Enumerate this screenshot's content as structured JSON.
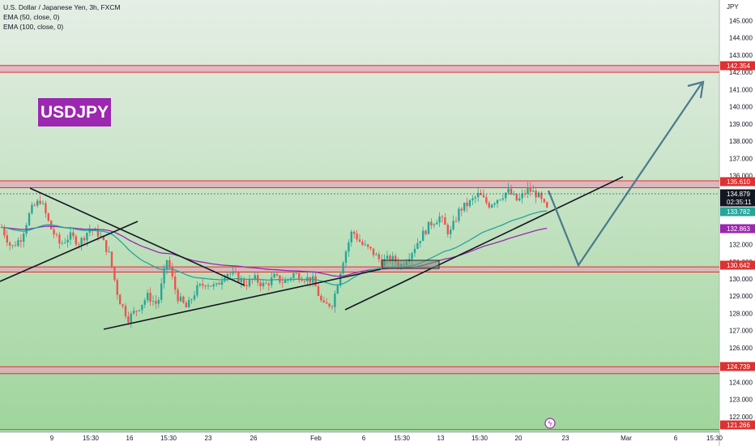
{
  "header": {
    "symbol_line": "U.S. Dollar / Japanese Yen, 3h, FXCM",
    "ema50": "EMA (50, close, 0)",
    "ema100": "EMA (100, close, 0)"
  },
  "watermark": "USDJPY",
  "colors": {
    "bg_top": "#e6eee6",
    "bg_bottom": "#9fd59c",
    "zone_red": "#e03030",
    "zone_fill": "#e7a7b8",
    "ema50": "#26a69a",
    "ema100": "#9c27b0",
    "bull": "#26a69a",
    "bear": "#ef5350",
    "trendline": "#131722",
    "projection": "#4a7a8c"
  },
  "chart_data": {
    "type": "candlestick",
    "currency": "JPY",
    "y_ticks": [
      122.0,
      123.0,
      124.0,
      125.0,
      126.0,
      127.0,
      128.0,
      129.0,
      130.0,
      131.0,
      132.0,
      133.0,
      134.0,
      135.0,
      136.0,
      137.0,
      138.0,
      139.0,
      140.0,
      141.0,
      142.0,
      143.0,
      144.0,
      145.0
    ],
    "ylim": [
      121.1,
      146.2
    ],
    "x_ticks": [
      "9",
      "15:30",
      "16",
      "15:30",
      "23",
      "26",
      "Feb",
      "6",
      "15:30",
      "13",
      "15:30",
      "20",
      "23",
      "Mar",
      "6",
      "15:30"
    ],
    "price_labels": [
      {
        "value": "142.354",
        "style": "red"
      },
      {
        "value": "135.610",
        "style": "red"
      },
      {
        "value": "134.879",
        "style": "dark"
      },
      {
        "value": "02:35:11",
        "style": "dark"
      },
      {
        "value": "133.782",
        "style": "teal"
      },
      {
        "value": "132.863",
        "style": "purple"
      },
      {
        "value": "130.642",
        "style": "red"
      },
      {
        "value": "124.739",
        "style": "red"
      },
      {
        "value": "121.266",
        "style": "red"
      }
    ],
    "zones": [
      {
        "from": 142.0,
        "to": 142.4
      },
      {
        "from": 135.3,
        "to": 135.7
      },
      {
        "from": 130.4,
        "to": 130.7
      },
      {
        "from": 124.5,
        "to": 124.9
      }
    ],
    "price_path": [
      133.0,
      131.8,
      132.4,
      134.0,
      134.6,
      133.0,
      132.0,
      132.5,
      132.1,
      132.9,
      132.6,
      131.5,
      128.9,
      127.7,
      128.3,
      129.0,
      128.5,
      131.2,
      129.0,
      128.3,
      129.4,
      129.8,
      129.5,
      130.4,
      130.2,
      129.7,
      130.0,
      129.6,
      130.1,
      129.8,
      130.3,
      130.1,
      129.9,
      128.4,
      128.6,
      131.0,
      132.8,
      132.0,
      131.6,
      131.0,
      131.2,
      130.8,
      131.5,
      132.4,
      133.2,
      133.6,
      132.6,
      134.0,
      134.4,
      134.9,
      134.3,
      134.7,
      135.1,
      134.5,
      135.2,
      134.9,
      134.0
    ]
  }
}
